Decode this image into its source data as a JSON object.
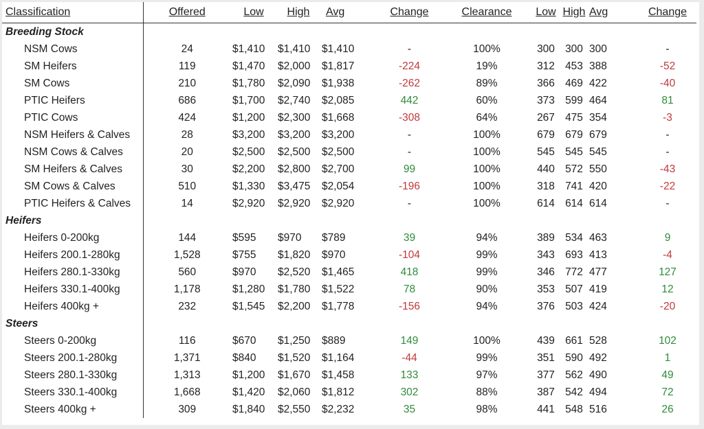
{
  "colors": {
    "positive": "#2e8b3a",
    "negative": "#c0393b",
    "neutral": "#222222"
  },
  "headers": {
    "classification": "Classification",
    "offered": "Offered",
    "low": "Low",
    "high": "High",
    "avg": "Avg",
    "change": "Change",
    "clearance": "Clearance",
    "low2": "Low",
    "high2": "High",
    "avg2": "Avg",
    "change2": "Change"
  },
  "rows": [
    {
      "type": "section",
      "label": "Breeding Stock"
    },
    {
      "type": "item",
      "label": "NSM Cows",
      "offered": "24",
      "low": "$1,410",
      "high": "$1,410",
      "avg": "$1,410",
      "change": "-",
      "change_tone": "neu",
      "clearance": "100%",
      "low2": "300",
      "high2": "300",
      "avg2": "300",
      "change2": "-",
      "change2_tone": "neu"
    },
    {
      "type": "item",
      "label": "SM Heifers",
      "offered": "119",
      "low": "$1,470",
      "high": "$2,000",
      "avg": "$1,817",
      "change": "-224",
      "change_tone": "neg",
      "clearance": "19%",
      "low2": "312",
      "high2": "453",
      "avg2": "388",
      "change2": "-52",
      "change2_tone": "neg"
    },
    {
      "type": "item",
      "label": "SM Cows",
      "offered": "210",
      "low": "$1,780",
      "high": "$2,090",
      "avg": "$1,938",
      "change": "-262",
      "change_tone": "neg",
      "clearance": "89%",
      "low2": "366",
      "high2": "469",
      "avg2": "422",
      "change2": "-40",
      "change2_tone": "neg"
    },
    {
      "type": "item",
      "label": "PTIC Heifers",
      "offered": "686",
      "low": "$1,700",
      "high": "$2,740",
      "avg": "$2,085",
      "change": "442",
      "change_tone": "pos",
      "clearance": "60%",
      "low2": "373",
      "high2": "599",
      "avg2": "464",
      "change2": "81",
      "change2_tone": "pos"
    },
    {
      "type": "item",
      "label": "PTIC Cows",
      "offered": "424",
      "low": "$1,200",
      "high": "$2,300",
      "avg": "$1,668",
      "change": "-308",
      "change_tone": "neg",
      "clearance": "64%",
      "low2": "267",
      "high2": "475",
      "avg2": "354",
      "change2": "-3",
      "change2_tone": "neg"
    },
    {
      "type": "item",
      "label": "NSM Heifers & Calves",
      "offered": "28",
      "low": "$3,200",
      "high": "$3,200",
      "avg": "$3,200",
      "change": "-",
      "change_tone": "neu",
      "clearance": "100%",
      "low2": "679",
      "high2": "679",
      "avg2": "679",
      "change2": "-",
      "change2_tone": "neu"
    },
    {
      "type": "item",
      "label": "NSM Cows & Calves",
      "offered": "20",
      "low": "$2,500",
      "high": "$2,500",
      "avg": "$2,500",
      "change": "-",
      "change_tone": "neu",
      "clearance": "100%",
      "low2": "545",
      "high2": "545",
      "avg2": "545",
      "change2": "-",
      "change2_tone": "neu"
    },
    {
      "type": "item",
      "label": "SM Heifers & Calves",
      "offered": "30",
      "low": "$2,200",
      "high": "$2,800",
      "avg": "$2,700",
      "change": "99",
      "change_tone": "pos",
      "clearance": "100%",
      "low2": "440",
      "high2": "572",
      "avg2": "550",
      "change2": "-43",
      "change2_tone": "neg"
    },
    {
      "type": "item",
      "label": "SM Cows & Calves",
      "offered": "510",
      "low": "$1,330",
      "high": "$3,475",
      "avg": "$2,054",
      "change": "-196",
      "change_tone": "neg",
      "clearance": "100%",
      "low2": "318",
      "high2": "741",
      "avg2": "420",
      "change2": "-22",
      "change2_tone": "neg"
    },
    {
      "type": "item",
      "label": "PTIC Heifers & Calves",
      "offered": "14",
      "low": "$2,920",
      "high": "$2,920",
      "avg": "$2,920",
      "change": "-",
      "change_tone": "neu",
      "clearance": "100%",
      "low2": "614",
      "high2": "614",
      "avg2": "614",
      "change2": "-",
      "change2_tone": "neu"
    },
    {
      "type": "section",
      "label": "Heifers"
    },
    {
      "type": "item",
      "label": "Heifers 0-200kg",
      "offered": "144",
      "low": "$595",
      "high": "$970",
      "avg": "$789",
      "change": "39",
      "change_tone": "pos",
      "clearance": "94%",
      "low2": "389",
      "high2": "534",
      "avg2": "463",
      "change2": "9",
      "change2_tone": "pos"
    },
    {
      "type": "item",
      "label": "Heifers 200.1-280kg",
      "offered": "1,528",
      "low": "$755",
      "high": "$1,820",
      "avg": "$970",
      "change": "-104",
      "change_tone": "neg",
      "clearance": "99%",
      "low2": "343",
      "high2": "693",
      "avg2": "413",
      "change2": "-4",
      "change2_tone": "neg"
    },
    {
      "type": "item",
      "label": "Heifers 280.1-330kg",
      "offered": "560",
      "low": "$970",
      "high": "$2,520",
      "avg": "$1,465",
      "change": "418",
      "change_tone": "pos",
      "clearance": "99%",
      "low2": "346",
      "high2": "772",
      "avg2": "477",
      "change2": "127",
      "change2_tone": "pos"
    },
    {
      "type": "item",
      "label": "Heifers 330.1-400kg",
      "offered": "1,178",
      "low": "$1,280",
      "high": "$1,780",
      "avg": "$1,522",
      "change": "78",
      "change_tone": "pos",
      "clearance": "90%",
      "low2": "353",
      "high2": "507",
      "avg2": "419",
      "change2": "12",
      "change2_tone": "pos"
    },
    {
      "type": "item",
      "label": "Heifers 400kg +",
      "offered": "232",
      "low": "$1,545",
      "high": "$2,200",
      "avg": "$1,778",
      "change": "-156",
      "change_tone": "neg",
      "clearance": "94%",
      "low2": "376",
      "high2": "503",
      "avg2": "424",
      "change2": "-20",
      "change2_tone": "neg"
    },
    {
      "type": "section",
      "label": "Steers"
    },
    {
      "type": "item",
      "label": "Steers 0-200kg",
      "offered": "116",
      "low": "$670",
      "high": "$1,250",
      "avg": "$889",
      "change": "149",
      "change_tone": "pos",
      "clearance": "100%",
      "low2": "439",
      "high2": "661",
      "avg2": "528",
      "change2": "102",
      "change2_tone": "pos"
    },
    {
      "type": "item",
      "label": "Steers 200.1-280kg",
      "offered": "1,371",
      "low": "$840",
      "high": "$1,520",
      "avg": "$1,164",
      "change": "-44",
      "change_tone": "neg",
      "clearance": "99%",
      "low2": "351",
      "high2": "590",
      "avg2": "492",
      "change2": "1",
      "change2_tone": "pos"
    },
    {
      "type": "item",
      "label": "Steers 280.1-330kg",
      "offered": "1,313",
      "low": "$1,200",
      "high": "$1,670",
      "avg": "$1,458",
      "change": "133",
      "change_tone": "pos",
      "clearance": "97%",
      "low2": "377",
      "high2": "562",
      "avg2": "490",
      "change2": "49",
      "change2_tone": "pos"
    },
    {
      "type": "item",
      "label": "Steers 330.1-400kg",
      "offered": "1,668",
      "low": "$1,420",
      "high": "$2,060",
      "avg": "$1,812",
      "change": "302",
      "change_tone": "pos",
      "clearance": "88%",
      "low2": "387",
      "high2": "542",
      "avg2": "494",
      "change2": "72",
      "change2_tone": "pos"
    },
    {
      "type": "item",
      "label": "Steers 400kg +",
      "offered": "309",
      "low": "$1,840",
      "high": "$2,550",
      "avg": "$2,232",
      "change": "35",
      "change_tone": "pos",
      "clearance": "98%",
      "low2": "441",
      "high2": "548",
      "avg2": "516",
      "change2": "26",
      "change2_tone": "pos"
    }
  ]
}
